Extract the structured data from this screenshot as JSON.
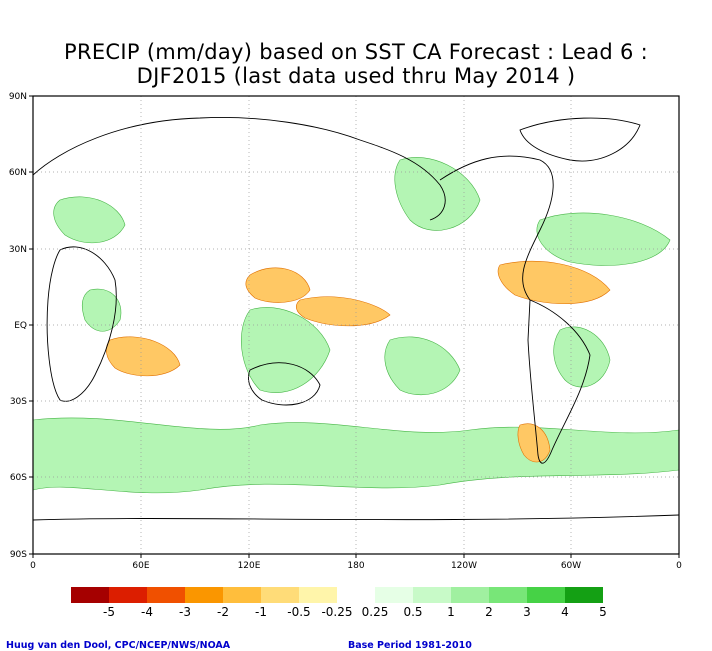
{
  "title": {
    "line1": "PRECIP (mm/day) based on SST CA Forecast : Lead 6 :",
    "line2": "DJF2015 (last data used thru May 2014 )"
  },
  "axes": {
    "y_labels": [
      "90N",
      "60N",
      "30N",
      "EQ",
      "30S",
      "60S",
      "90S"
    ],
    "x_labels": [
      "0",
      "60E",
      "120E",
      "180",
      "120W",
      "60W",
      "0"
    ]
  },
  "legend": {
    "labels": [
      "-5",
      "-4",
      "-3",
      "-2",
      "-1",
      "-0.5",
      "-0.25",
      "0.25",
      "0.5",
      "1",
      "2",
      "3",
      "4",
      "5"
    ],
    "colors": [
      "#a50000",
      "#dc1e00",
      "#f05000",
      "#fa9600",
      "#ffbe3c",
      "#ffdc78",
      "#fff5aa",
      "#ffffff",
      "#e6ffe6",
      "#c8fac8",
      "#a0f0a0",
      "#78e678",
      "#46d246",
      "#14a014"
    ]
  },
  "footer": {
    "credit": "Huug van den Dool, CPC/NCEP/NWS/NOAA",
    "base_period": "Base Period 1981-2010"
  }
}
